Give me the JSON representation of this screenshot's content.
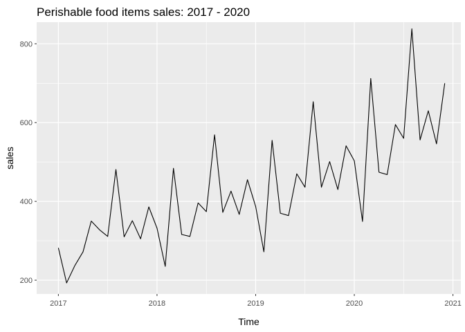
{
  "chart_data": {
    "type": "line",
    "title": "Perishable food items sales: 2017 - 2020",
    "xlabel": "Time",
    "ylabel": "sales",
    "xlim": [
      2016.78,
      2021.08
    ],
    "ylim": [
      165,
      855
    ],
    "x_ticks": [
      2017,
      2018,
      2019,
      2020,
      2021
    ],
    "x_tick_labels": [
      "2017",
      "2018",
      "2019",
      "2020",
      "2021"
    ],
    "y_ticks": [
      200,
      400,
      600,
      800
    ],
    "y_tick_labels": [
      "200",
      "400",
      "600",
      "800"
    ],
    "grid": true,
    "legend": "none",
    "colors": {
      "panel": "#ebebeb",
      "grid": "#ffffff",
      "line": "#000000"
    },
    "series": [
      {
        "x": [
          2017.0,
          2017.0833,
          2017.1667,
          2017.25,
          2017.3333,
          2017.4167,
          2017.5,
          2017.5833,
          2017.6667,
          2017.75,
          2017.8333,
          2017.9167,
          2018.0,
          2018.0833,
          2018.1667,
          2018.25,
          2018.3333,
          2018.4167,
          2018.5,
          2018.5833,
          2018.6667,
          2018.75,
          2018.8333,
          2018.9167,
          2019.0,
          2019.0833,
          2019.1667,
          2019.25,
          2019.3333,
          2019.4167,
          2019.5,
          2019.5833,
          2019.6667,
          2019.75,
          2019.8333,
          2019.9167,
          2020.0,
          2020.0833,
          2020.1667,
          2020.25,
          2020.3333,
          2020.4167,
          2020.5,
          2020.5833,
          2020.6667,
          2020.75,
          2020.8333,
          2020.9167
        ],
        "values": [
          282,
          193,
          237,
          272,
          350,
          328,
          311,
          481,
          310,
          351,
          305,
          386,
          332,
          235,
          484,
          316,
          311,
          396,
          374,
          569,
          372,
          426,
          367,
          455,
          387,
          272,
          555,
          370,
          364,
          470,
          436,
          653,
          436,
          501,
          430,
          541,
          503,
          349,
          712,
          474,
          468,
          595,
          560,
          838,
          556,
          630,
          546,
          700
        ]
      }
    ]
  }
}
